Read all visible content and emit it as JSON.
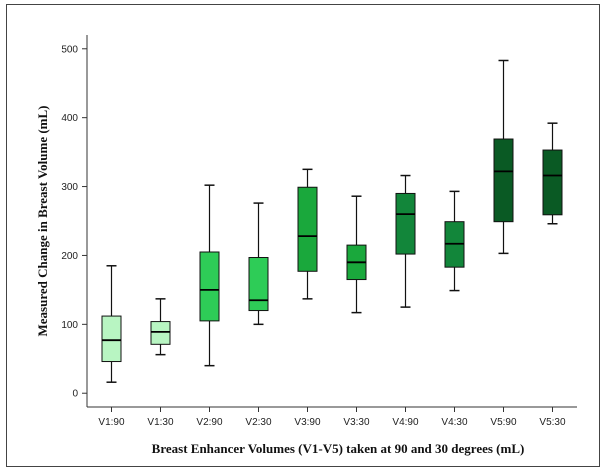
{
  "chart_data": {
    "type": "box",
    "title": "",
    "xlabel": "Breast Enhancer Volumes (V1-V5) taken at 90 and 30 degrees (mL)",
    "ylabel": "Measured Change in Breast Volume (mL)",
    "ylim": [
      -20,
      520
    ],
    "yticks": [
      0,
      100,
      200,
      300,
      400,
      500
    ],
    "categories": [
      "V1:90",
      "V1:30",
      "V2:90",
      "V2:30",
      "V3:90",
      "V3:30",
      "V4:90",
      "V4:30",
      "V5:90",
      "V5:30"
    ],
    "boxes": [
      {
        "category": "V1:90",
        "min": 16,
        "q1": 46,
        "median": 77,
        "q3": 112,
        "max": 185,
        "color": "#b8f5c2"
      },
      {
        "category": "V1:30",
        "min": 56,
        "q1": 71,
        "median": 89,
        "q3": 104,
        "max": 137,
        "color": "#b8f5c2"
      },
      {
        "category": "V2:90",
        "min": 40,
        "q1": 105,
        "median": 150,
        "q3": 205,
        "max": 302,
        "color": "#2ecc57"
      },
      {
        "category": "V2:30",
        "min": 100,
        "q1": 120,
        "median": 135,
        "q3": 197,
        "max": 276,
        "color": "#2ecc57"
      },
      {
        "category": "V3:90",
        "min": 137,
        "q1": 177,
        "median": 228,
        "q3": 299,
        "max": 325,
        "color": "#1aa83c"
      },
      {
        "category": "V3:30",
        "min": 117,
        "q1": 165,
        "median": 190,
        "q3": 215,
        "max": 286,
        "color": "#1aa83c"
      },
      {
        "category": "V4:90",
        "min": 125,
        "q1": 202,
        "median": 260,
        "q3": 290,
        "max": 316,
        "color": "#12863a"
      },
      {
        "category": "V4:30",
        "min": 149,
        "q1": 183,
        "median": 217,
        "q3": 249,
        "max": 293,
        "color": "#12863a"
      },
      {
        "category": "V5:90",
        "min": 203,
        "q1": 249,
        "median": 322,
        "q3": 369,
        "max": 483,
        "color": "#0a5a24"
      },
      {
        "category": "V5:30",
        "min": 246,
        "q1": 259,
        "median": 316,
        "q3": 353,
        "max": 392,
        "color": "#0a5a24"
      }
    ],
    "grid": false,
    "legend": "none"
  }
}
